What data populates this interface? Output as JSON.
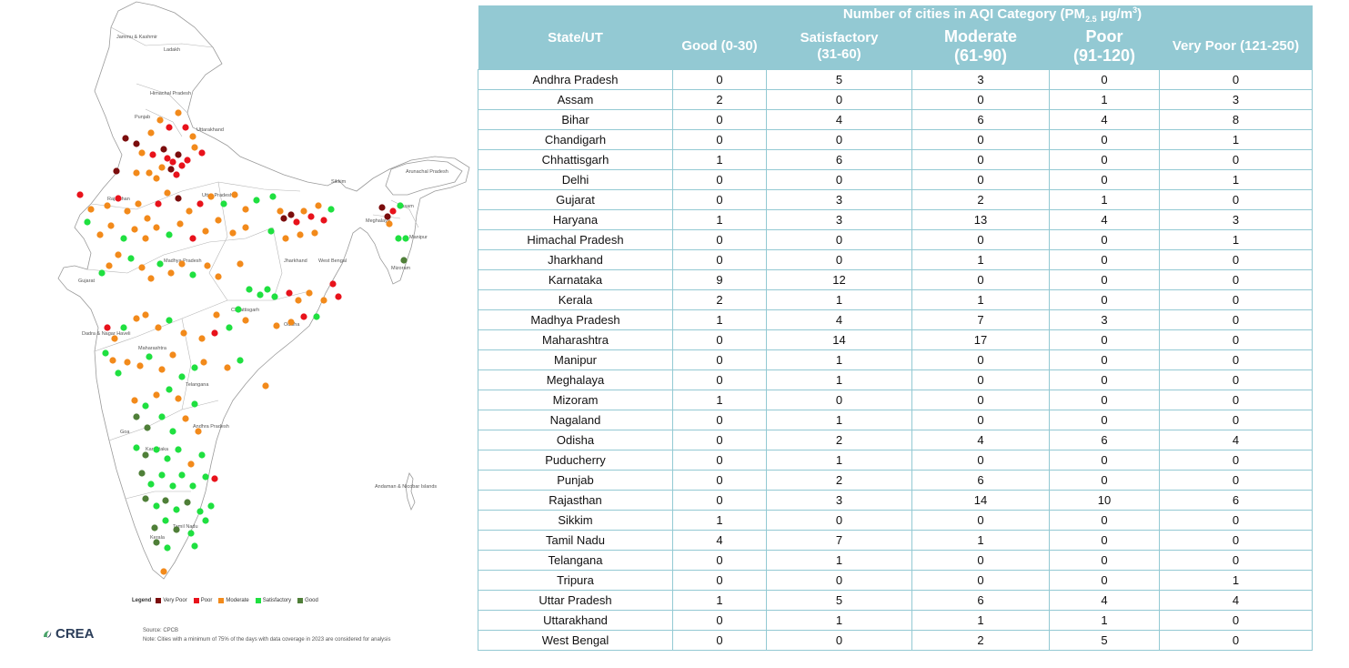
{
  "map": {
    "region_labels": [
      "Jammu & Kashmir",
      "Ladakh",
      "Himachal Pradesh",
      "Punjab",
      "Uttarakhand",
      "Arunachal Pradesh",
      "Sikkim",
      "Rajasthan",
      "Uttar Pradesh",
      "Assam",
      "Meghalaya",
      "Manipur",
      "Mizoram",
      "Gujarat",
      "Madhya Pradesh",
      "Jharkhand",
      "West Bengal",
      "Chhattisgarh",
      "Odisha",
      "Dadra & Nagar Haveli",
      "Maharashtra",
      "Telangana",
      "Andhra Pradesh",
      "Goa",
      "Karnataka",
      "Andaman & Nicobar Islands",
      "Tamil Nadu",
      "Kerala"
    ],
    "colors": {
      "very_poor": "#7b0d0d",
      "poor": "#e8121b",
      "moderate": "#f28a1b",
      "satisfactory": "#1fe040",
      "good": "#4f7f38"
    },
    "legend": {
      "title": "Legend",
      "items": [
        {
          "label": "Very Poor",
          "color": "#7b0d0d"
        },
        {
          "label": "Poor",
          "color": "#e8121b"
        },
        {
          "label": "Moderate",
          "color": "#f28a1b"
        },
        {
          "label": "Satisfactory",
          "color": "#1fe040"
        },
        {
          "label": "Good",
          "color": "#4f7f38"
        }
      ]
    },
    "logo": "CREA",
    "source": "Source: CPCB",
    "note": "Note: Cities with a minimum of 75% of the days with data coverage in 2023 are considered for analysis"
  },
  "table": {
    "state_header": "State/UT",
    "group_header": "Number of cities in AQI Category (PM",
    "group_sub": "2.5",
    "group_unit": " µg/m",
    "group_sup": "3",
    "group_close": ")",
    "categories": [
      {
        "line1": "Good (0-30)",
        "line2": ""
      },
      {
        "line1": "Satisfactory",
        "line2": "(31-60)"
      },
      {
        "line1": "Moderate",
        "line2": "(61-90)"
      },
      {
        "line1": "Poor",
        "line2": "(91-120)"
      },
      {
        "line1": "Very Poor (121-250)",
        "line2": ""
      }
    ],
    "rows": [
      {
        "state": "Andhra Pradesh",
        "values": [
          0,
          5,
          3,
          0,
          0
        ]
      },
      {
        "state": "Assam",
        "values": [
          2,
          0,
          0,
          1,
          3
        ]
      },
      {
        "state": "Bihar",
        "values": [
          0,
          4,
          6,
          4,
          8
        ]
      },
      {
        "state": "Chandigarh",
        "values": [
          0,
          0,
          0,
          0,
          1
        ]
      },
      {
        "state": "Chhattisgarh",
        "values": [
          1,
          6,
          0,
          0,
          0
        ]
      },
      {
        "state": "Delhi",
        "values": [
          0,
          0,
          0,
          0,
          1
        ]
      },
      {
        "state": "Gujarat",
        "values": [
          0,
          3,
          2,
          1,
          0
        ]
      },
      {
        "state": "Haryana",
        "values": [
          1,
          3,
          13,
          4,
          3
        ]
      },
      {
        "state": "Himachal Pradesh",
        "values": [
          0,
          0,
          0,
          0,
          1
        ]
      },
      {
        "state": "Jharkhand",
        "values": [
          0,
          0,
          1,
          0,
          0
        ]
      },
      {
        "state": "Karnataka",
        "values": [
          9,
          12,
          0,
          0,
          0
        ]
      },
      {
        "state": "Kerala",
        "values": [
          2,
          1,
          1,
          0,
          0
        ]
      },
      {
        "state": "Madhya Pradesh",
        "values": [
          1,
          4,
          7,
          3,
          0
        ]
      },
      {
        "state": "Maharashtra",
        "values": [
          0,
          14,
          17,
          0,
          0
        ]
      },
      {
        "state": "Manipur",
        "values": [
          0,
          1,
          0,
          0,
          0
        ]
      },
      {
        "state": "Meghalaya",
        "values": [
          0,
          1,
          0,
          0,
          0
        ]
      },
      {
        "state": "Mizoram",
        "values": [
          1,
          0,
          0,
          0,
          0
        ]
      },
      {
        "state": "Nagaland",
        "values": [
          0,
          1,
          0,
          0,
          0
        ]
      },
      {
        "state": "Odisha",
        "values": [
          0,
          2,
          4,
          6,
          4
        ]
      },
      {
        "state": "Puducherry",
        "values": [
          0,
          1,
          0,
          0,
          0
        ]
      },
      {
        "state": "Punjab",
        "values": [
          0,
          2,
          6,
          0,
          0
        ]
      },
      {
        "state": "Rajasthan",
        "values": [
          0,
          3,
          14,
          10,
          6
        ]
      },
      {
        "state": "Sikkim",
        "values": [
          1,
          0,
          0,
          0,
          0
        ]
      },
      {
        "state": "Tamil Nadu",
        "values": [
          4,
          7,
          1,
          0,
          0
        ]
      },
      {
        "state": "Telangana",
        "values": [
          0,
          1,
          0,
          0,
          0
        ]
      },
      {
        "state": "Tripura",
        "values": [
          0,
          0,
          0,
          0,
          1
        ]
      },
      {
        "state": "Uttar Pradesh",
        "values": [
          1,
          5,
          6,
          4,
          4
        ]
      },
      {
        "state": "Uttarakhand",
        "values": [
          0,
          1,
          1,
          1,
          0
        ]
      },
      {
        "state": "West Bengal",
        "values": [
          0,
          0,
          2,
          5,
          0
        ]
      }
    ]
  }
}
